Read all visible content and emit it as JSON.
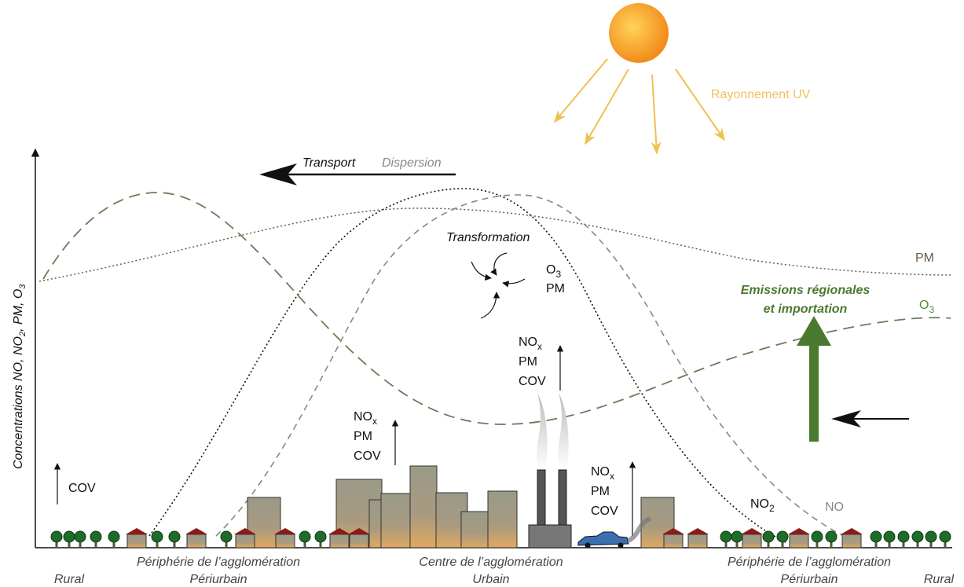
{
  "sun": {
    "label": "Rayonnement UV"
  },
  "transport": {
    "label": "Transport",
    "secondary": "Dispersion"
  },
  "y_axis_label": {
    "parts": [
      "Concentrations NO, NO",
      "2",
      ", PM, O",
      "3"
    ]
  },
  "transformation": {
    "label": "Transformation",
    "products": [
      [
        "O",
        "3"
      ],
      [
        "PM"
      ]
    ]
  },
  "curves": {
    "pm": {
      "label": [
        "PM"
      ]
    },
    "o3": {
      "label": [
        "O",
        "3"
      ]
    },
    "no2": {
      "label": [
        "NO",
        "2"
      ]
    },
    "no": {
      "label": [
        "NO"
      ]
    }
  },
  "emissions": {
    "lines": [
      "Emissions régionales",
      "et importation"
    ]
  },
  "sources": {
    "rural": [
      "COV"
    ],
    "city": [
      [
        "NO",
        "x"
      ],
      [
        "PM"
      ],
      [
        "COV"
      ]
    ],
    "chimney": [
      [
        "NO",
        "x"
      ],
      [
        "PM"
      ],
      [
        "COV"
      ]
    ],
    "traffic": [
      [
        "NO",
        "x"
      ],
      [
        "PM"
      ],
      [
        "COV"
      ]
    ]
  },
  "zones": [
    {
      "name": "Rural"
    },
    {
      "name": "Périphérie de l’agglomération",
      "sub": "Périurbain"
    },
    {
      "name": "Centre de l’agglomération",
      "sub": "Urbain"
    },
    {
      "name": "Périphérie de l’agglomération",
      "sub": "Périurbain"
    },
    {
      "name": "Rural"
    }
  ]
}
